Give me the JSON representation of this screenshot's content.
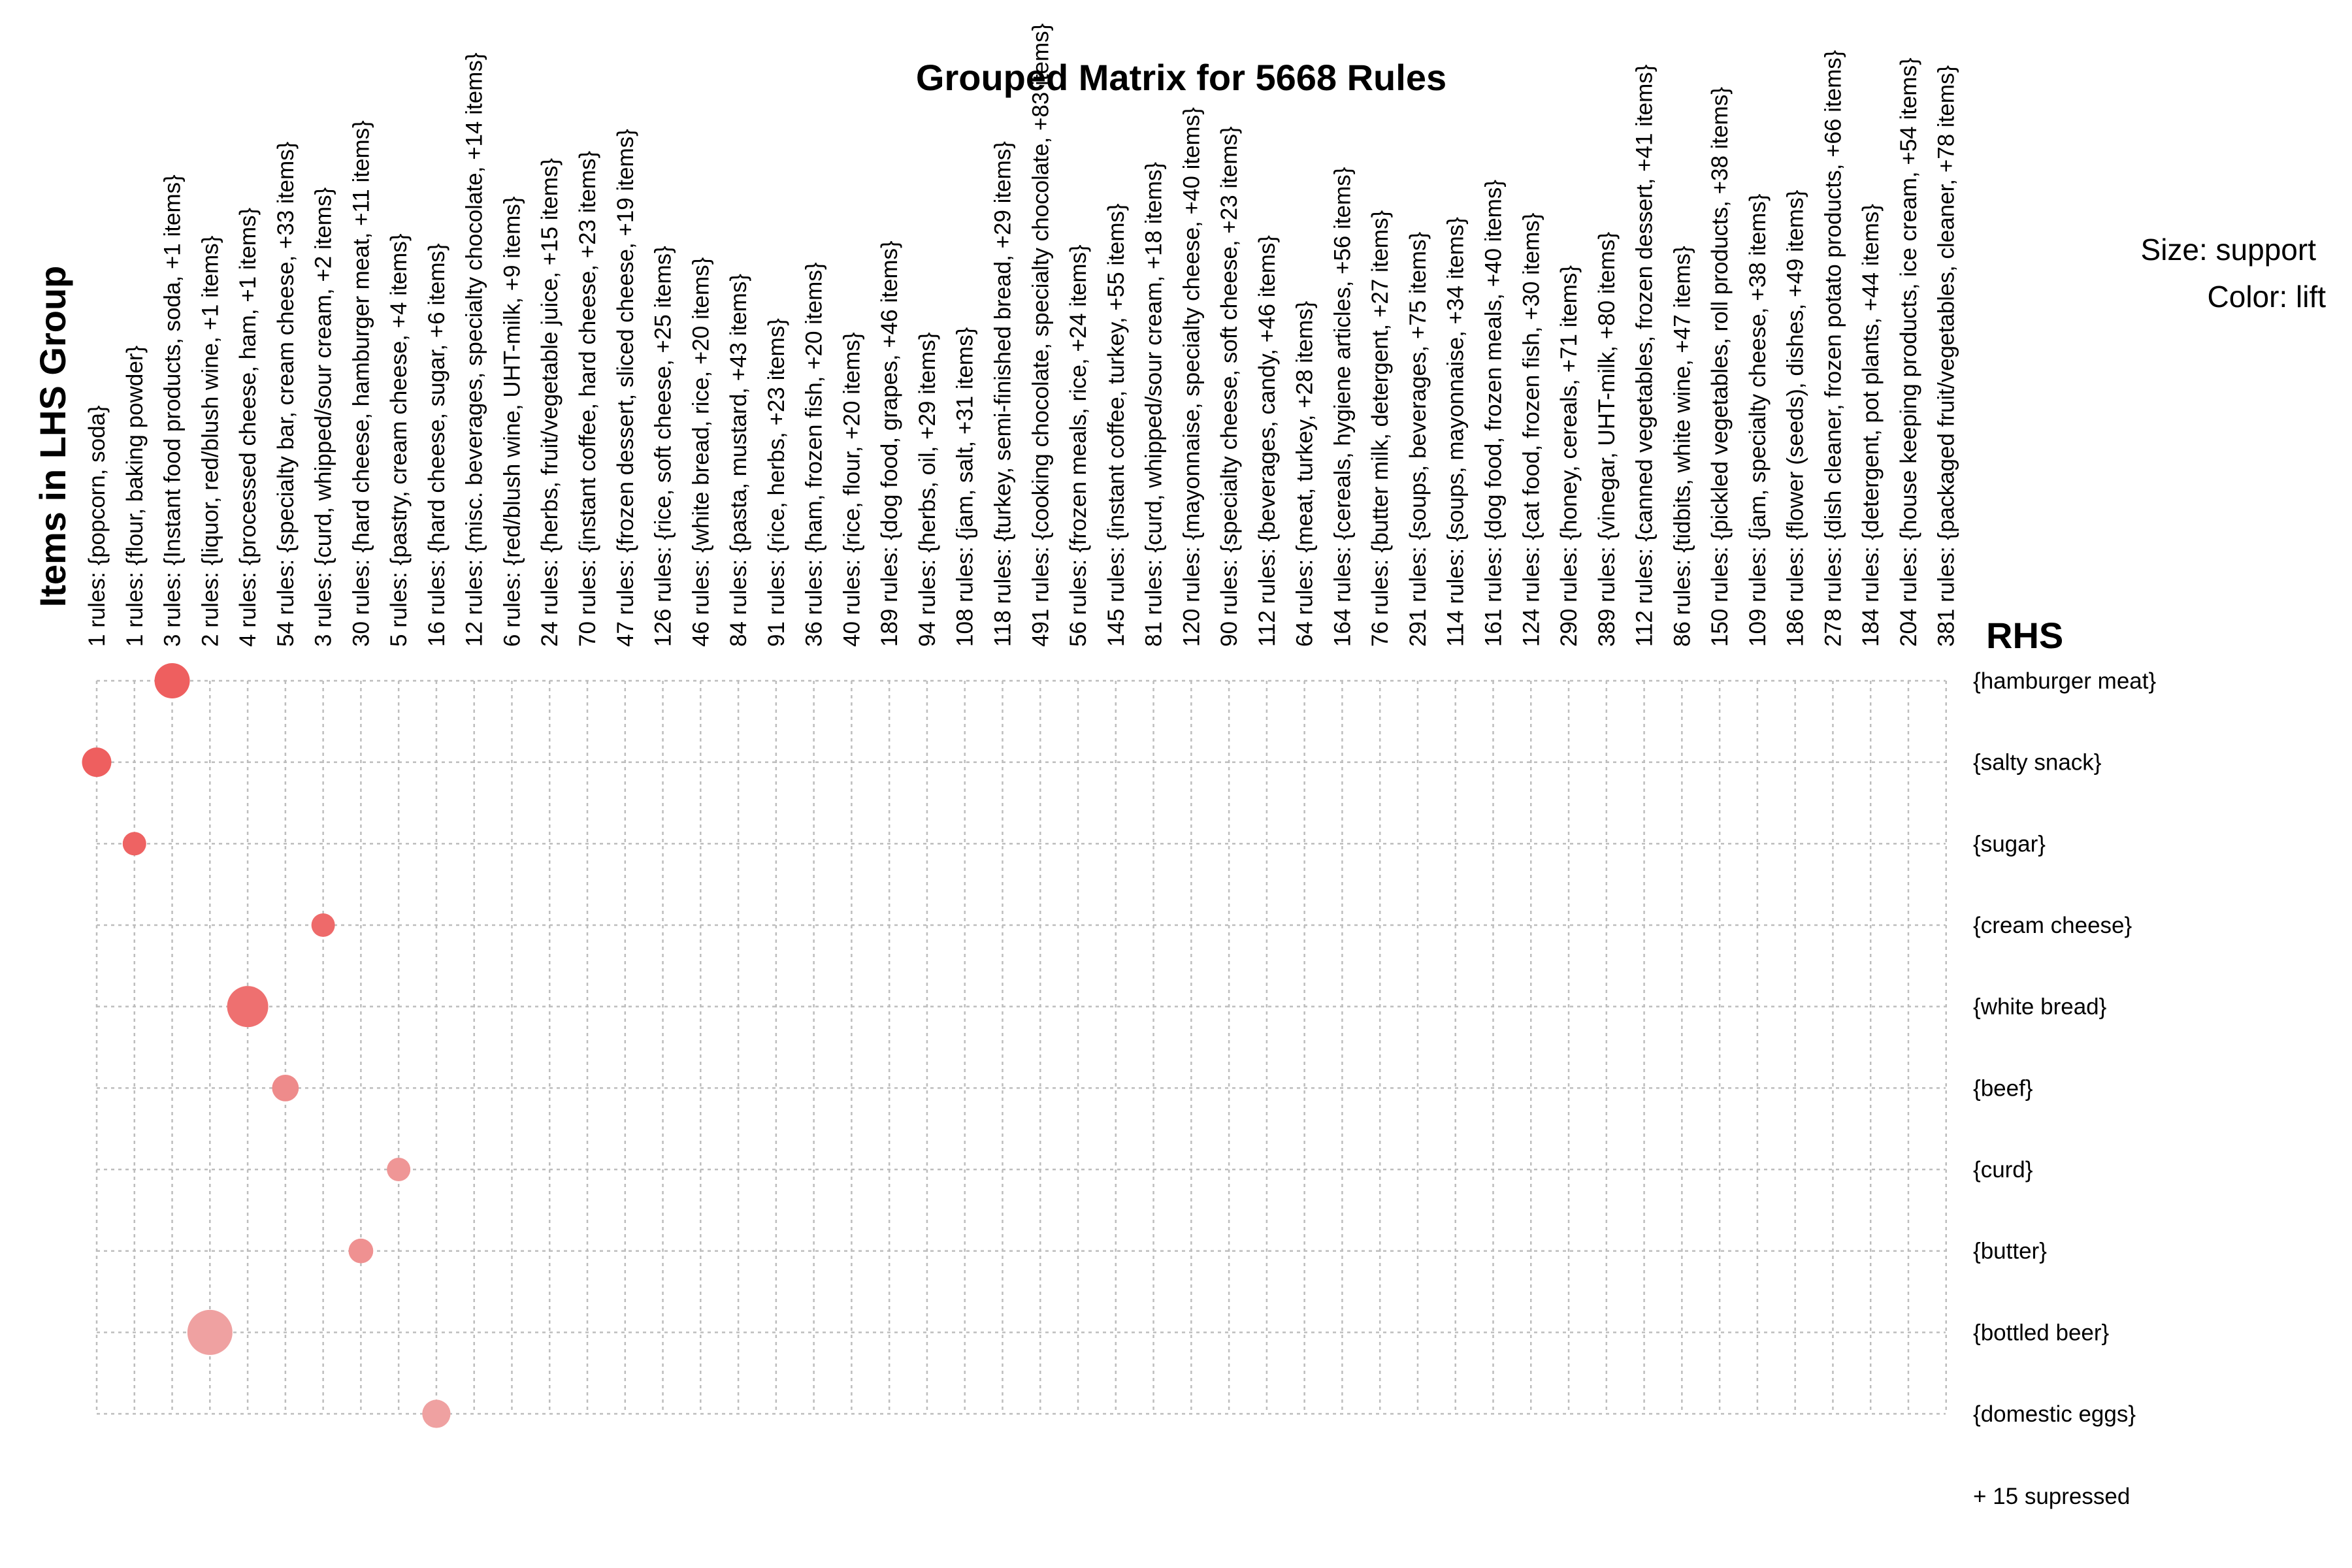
{
  "chart_data": {
    "type": "scatter",
    "title": "Grouped Matrix for 5668 Rules",
    "ylabel": "Items in LHS Group",
    "rhs_title": "RHS",
    "legend": {
      "size": "Size: support",
      "color": "Color: lift"
    },
    "lhs_groups": [
      "1 rules: {popcorn, soda}",
      "1 rules: {flour, baking powder}",
      "3 rules: {Instant food products, soda, +1 items}",
      "2 rules: {liquor, red/blush wine, +1 items}",
      "4 rules: {processed cheese, ham, +1 items}",
      "54 rules: {specialty bar, cream cheese, +33 items}",
      "3 rules: {curd, whipped/sour cream, +2 items}",
      "30 rules: {hard cheese, hamburger meat, +11 items}",
      "5 rules: {pastry, cream cheese, +4 items}",
      "16 rules: {hard cheese, sugar, +6 items}",
      "12 rules: {misc. beverages, specialty chocolate, +14 items}",
      "6 rules: {red/blush wine, UHT-milk, +9 items}",
      "24 rules: {herbs, fruit/vegetable juice, +15 items}",
      "70 rules: {instant coffee, hard cheese, +23 items}",
      "47 rules: {frozen dessert, sliced cheese, +19 items}",
      "126 rules: {rice, soft cheese, +25 items}",
      "46 rules: {white bread, rice, +20 items}",
      "84 rules: {pasta, mustard, +43 items}",
      "91 rules: {rice, herbs, +23 items}",
      "36 rules: {ham, frozen fish, +20 items}",
      "40 rules: {rice, flour, +20 items}",
      "189 rules: {dog food, grapes, +46 items}",
      "94 rules: {herbs, oil, +29 items}",
      "108 rules: {jam, salt, +31 items}",
      "118 rules: {turkey, semi-finished bread, +29 items}",
      "491 rules: {cooking chocolate, specialty chocolate, +83 items}",
      "56 rules: {frozen meals, rice, +24 items}",
      "145 rules: {instant coffee, turkey, +55 items}",
      "81 rules: {curd, whipped/sour cream, +18 items}",
      "120 rules: {mayonnaise, specialty cheese, +40 items}",
      "90 rules: {specialty cheese, soft cheese, +23 items}",
      "112 rules: {beverages, candy, +46 items}",
      "64 rules: {meat, turkey, +28 items}",
      "164 rules: {cereals, hygiene articles, +56 items}",
      "76 rules: {butter milk, detergent, +27 items}",
      "291 rules: {soups, beverages, +75 items}",
      "114 rules: {soups, mayonnaise, +34 items}",
      "161 rules: {dog food, frozen meals, +40 items}",
      "124 rules: {cat food, frozen fish, +30 items}",
      "290 rules: {honey, cereals, +71 items}",
      "389 rules: {vinegar, UHT-milk, +80 items}",
      "112 rules: {canned vegetables, frozen dessert, +41 items}",
      "86 rules: {tidbits, white wine, +47 items}",
      "150 rules: {pickled vegetables, roll products, +38 items}",
      "109 rules: {jam, specialty cheese, +38 items}",
      "186 rules: {flower (seeds), dishes, +49 items}",
      "278 rules: {dish cleaner, frozen potato products, +66 items}",
      "184 rules: {detergent, pot plants, +44 items}",
      "204 rules: {house keeping products, ice cream, +54 items}",
      "381 rules: {packaged fruit/vegetables, cleaner, +78 items}"
    ],
    "rhs": [
      "{hamburger meat}",
      "{salty snack}",
      "{sugar}",
      "{cream cheese}",
      "{white bread}",
      "{beef}",
      "{curd}",
      "{butter}",
      "{bottled beer}",
      "{domestic eggs}"
    ],
    "suppressed_label": "+ 15 supressed",
    "points": [
      {
        "lhs": 2,
        "rhs": 0,
        "support": 0.6,
        "lift": 0.95
      },
      {
        "lhs": 0,
        "rhs": 1,
        "support": 0.45,
        "lift": 0.95
      },
      {
        "lhs": 1,
        "rhs": 2,
        "support": 0.3,
        "lift": 0.92
      },
      {
        "lhs": 6,
        "rhs": 3,
        "support": 0.3,
        "lift": 0.85
      },
      {
        "lhs": 4,
        "rhs": 4,
        "support": 0.75,
        "lift": 0.8
      },
      {
        "lhs": 5,
        "rhs": 5,
        "support": 0.38,
        "lift": 0.55
      },
      {
        "lhs": 8,
        "rhs": 6,
        "support": 0.3,
        "lift": 0.45
      },
      {
        "lhs": 7,
        "rhs": 7,
        "support": 0.33,
        "lift": 0.5
      },
      {
        "lhs": 3,
        "rhs": 8,
        "support": 0.85,
        "lift": 0.35
      },
      {
        "lhs": 9,
        "rhs": 9,
        "support": 0.42,
        "lift": 0.35
      }
    ],
    "colors": {
      "high_lift": "#ee5a5a",
      "low_lift": "#efc7c7",
      "grid": "#bdbdbd"
    },
    "grid": true,
    "legend_position": "top-right"
  }
}
